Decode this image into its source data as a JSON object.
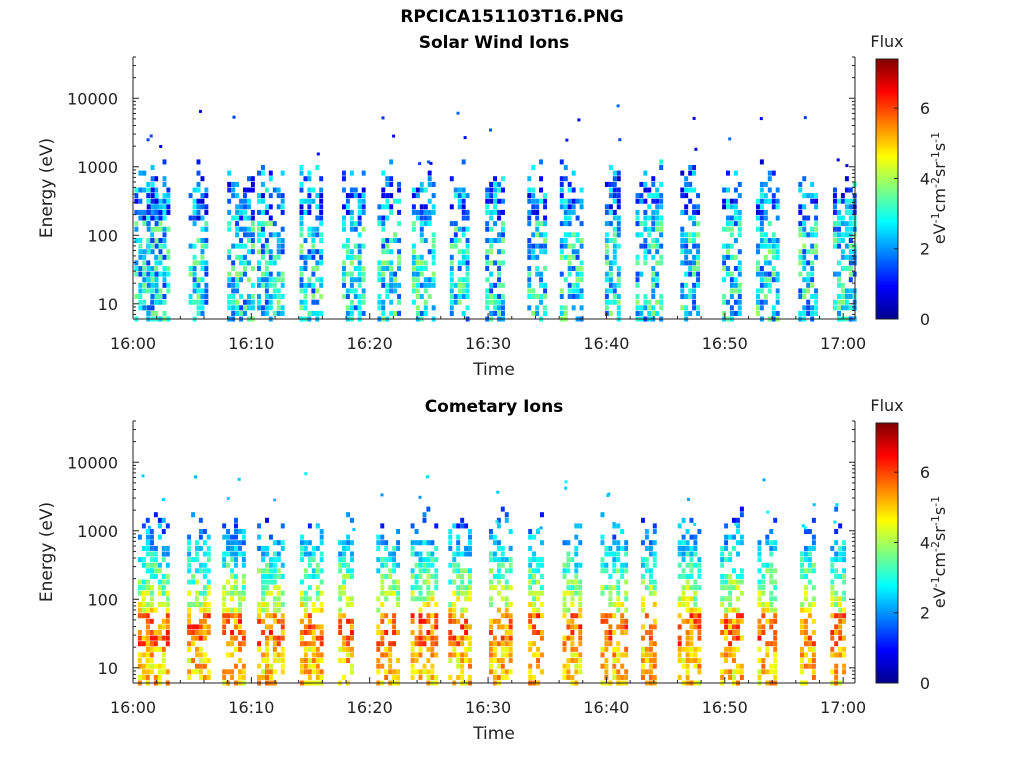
{
  "figure": {
    "title": "RPCICA151103T16.PNG"
  },
  "colorbar": {
    "title": "Flux",
    "unit_label": "eV-1cm-2sr-1s-1",
    "range": [
      0,
      7.4
    ],
    "ticks": [
      "0",
      "2",
      "4",
      "6"
    ],
    "colormap": "jet"
  },
  "chart_data": [
    {
      "type": "heatmap",
      "title": "Solar Wind Ions",
      "xlabel": "Time",
      "ylabel": "Energy (eV)",
      "x_ticks": [
        "16:00",
        "16:10",
        "16:20",
        "16:30",
        "16:40",
        "16:50",
        "17:00"
      ],
      "x_range": [
        "16:00",
        "17:01"
      ],
      "y_scale": "log",
      "y_ticks": [
        "10",
        "100",
        "1000",
        "10000"
      ],
      "y_range": [
        6,
        40000
      ],
      "bursts_minutes": [
        1,
        2,
        5.5,
        9,
        11.5,
        15,
        18.5,
        21.5,
        24.5,
        27.5,
        30.5,
        34,
        37,
        40.5,
        43.5,
        47,
        50.5,
        53.5,
        57,
        60
      ],
      "typical_energy_range_eV": [
        10,
        500
      ],
      "typical_flux": [
        0.8,
        3.8
      ],
      "grid": false
    },
    {
      "type": "heatmap",
      "title": "Cometary Ions",
      "xlabel": "Time",
      "ylabel": "Energy (eV)",
      "x_ticks": [
        "16:00",
        "16:10",
        "16:20",
        "16:30",
        "16:40",
        "16:50",
        "17:00"
      ],
      "x_range": [
        "16:00",
        "17:01"
      ],
      "y_scale": "log",
      "y_ticks": [
        "10",
        "100",
        "1000",
        "10000"
      ],
      "y_range": [
        6,
        40000
      ],
      "bursts_minutes": [
        1,
        2,
        5.5,
        8.5,
        11.5,
        15,
        18,
        21.5,
        24.5,
        27.5,
        31,
        34,
        37,
        40.5,
        43.5,
        47,
        50.5,
        53.5,
        57,
        59.5
      ],
      "typical_energy_range_eV": [
        8,
        800
      ],
      "peak_energy_band_eV": [
        20,
        60
      ],
      "typical_flux": [
        2.5,
        6.5
      ],
      "grid": false
    }
  ]
}
